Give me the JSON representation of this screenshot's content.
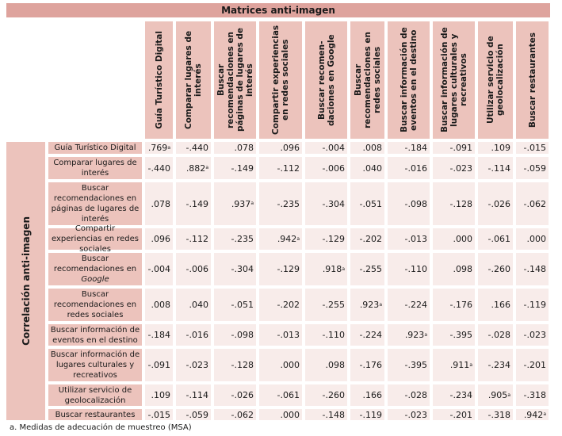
{
  "title": "Matrices anti-imagen",
  "side_label": "Correlación anti-imagen",
  "columns": [
    "Guía Turístico Digital",
    "Comparar lugares de interés",
    "Buscar recomendaciones en páginas de lugares de interés",
    "Compartir experiencias en redes sociales",
    "Buscar recomen-daciones en Google",
    "Buscar recomendaciones en redes sociales",
    "Buscar información de eventos en el destino",
    "Buscar información de lugares culturales y recreativos",
    "Utilizar servicio de geolocalización",
    "Buscar restaurantes"
  ],
  "rows": [
    {
      "label": "Guía Turístico Digital",
      "values": [
        ".769",
        "-.440",
        ".078",
        ".096",
        "-.004",
        ".008",
        "-.184",
        "-.091",
        ".109",
        "-.015"
      ]
    },
    {
      "label": "Comparar lugares de interés",
      "values": [
        "-.440",
        ".882",
        "-.149",
        "-.112",
        "-.006",
        ".040",
        "-.016",
        "-.023",
        "-.114",
        "-.059"
      ]
    },
    {
      "label": "Buscar recomendaciones en páginas de lugares de interés",
      "values": [
        ".078",
        "-.149",
        ".937",
        "-.235",
        "-.304",
        "-.051",
        "-.098",
        "-.128",
        "-.026",
        "-.062"
      ]
    },
    {
      "label": "Compartir experiencias en redes sociales",
      "values": [
        ".096",
        "-.112",
        "-.235",
        ".942",
        "-.129",
        "-.202",
        "-.013",
        ".000",
        "-.061",
        ".000"
      ]
    },
    {
      "label": "Buscar recomendaciones en",
      "label_italic": "Google",
      "values": [
        "-.004",
        "-.006",
        "-.304",
        "-.129",
        ".918",
        "-.255",
        "-.110",
        ".098",
        "-.260",
        "-.148"
      ]
    },
    {
      "label": "Buscar recomendaciones en redes sociales",
      "values": [
        ".008",
        ".040",
        "-.051",
        "-.202",
        "-.255",
        ".923",
        "-.224",
        "-.176",
        ".166",
        "-.119"
      ]
    },
    {
      "label": "Buscar información de eventos en el destino",
      "values": [
        "-.184",
        "-.016",
        "-.098",
        "-.013",
        "-.110",
        "-.224",
        ".923",
        "-.395",
        "-.028",
        "-.023"
      ]
    },
    {
      "label": "Buscar información de lugares culturales y recreativos",
      "values": [
        "-.091",
        "-.023",
        "-.128",
        ".000",
        ".098",
        "-.176",
        "-.395",
        ".911",
        "-.234",
        "-.201"
      ]
    },
    {
      "label": "Utilizar servicio de geolocalización",
      "values": [
        ".109",
        "-.114",
        "-.026",
        "-.061",
        "-.260",
        ".166",
        "-.028",
        "-.234",
        ".905",
        "-.318"
      ]
    },
    {
      "label": "Buscar restaurantes",
      "values": [
        "-.015",
        "-.059",
        "-.062",
        ".000",
        "-.148",
        "-.119",
        "-.023",
        "-.201",
        "-.318",
        ".942"
      ]
    }
  ],
  "diag_marker": "a",
  "footnote": "a. Medidas de adecuación de muestreo (MSA)",
  "colors": {
    "title_bg": "#dea39d",
    "header_bg": "#ecc3bc",
    "cell_bg": "#f8ecea"
  }
}
